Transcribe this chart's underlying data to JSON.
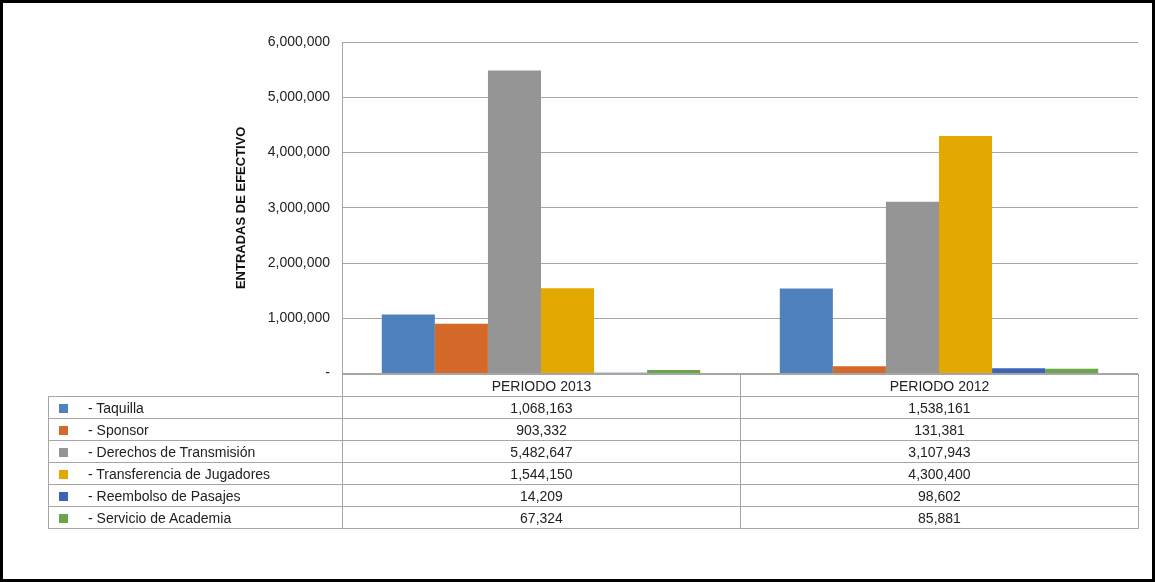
{
  "chart_data": {
    "type": "bar",
    "ylabel": "ENTRADAS DE EFECTIVO",
    "categories": [
      "PERIODO 2013",
      "PERIODO 2012"
    ],
    "series": [
      {
        "name": "- Taquilla",
        "color": "#4f81bd",
        "values": [
          1068163,
          1538161
        ],
        "value_labels": [
          "1,068,163",
          "1,538,161"
        ]
      },
      {
        "name": "- Sponsor",
        "color": "#d4692a",
        "values": [
          903332,
          131381
        ],
        "value_labels": [
          "903,332",
          "131,381"
        ]
      },
      {
        "name": "- Derechos de Transmisión",
        "color": "#959595",
        "values": [
          5482647,
          3107943
        ],
        "value_labels": [
          "5,482,647",
          "3,107,943"
        ]
      },
      {
        "name": "- Transferencia de Jugadores",
        "color": "#e4a900",
        "values": [
          1544150,
          4300400
        ],
        "value_labels": [
          "1,544,150",
          "4,300,400"
        ]
      },
      {
        "name": "- Reembolso de Pasajes",
        "color": "#3d63b8",
        "values": [
          14209,
          98602
        ],
        "value_labels": [
          "14,209",
          "98,602"
        ]
      },
      {
        "name": "- Servicio de Academia",
        "color": "#6ba54a",
        "values": [
          67324,
          85881
        ],
        "value_labels": [
          "67,324",
          "85,881"
        ]
      }
    ],
    "ylim": [
      0,
      6000000
    ],
    "yticks": [
      {
        "value": 0,
        "label": "-"
      },
      {
        "value": 1000000,
        "label": "1,000,000"
      },
      {
        "value": 2000000,
        "label": "2,000,000"
      },
      {
        "value": 3000000,
        "label": "3,000,000"
      },
      {
        "value": 4000000,
        "label": "4,000,000"
      },
      {
        "value": 5000000,
        "label": "5,000,000"
      },
      {
        "value": 6000000,
        "label": "6,000,000"
      }
    ],
    "grid": "y",
    "legend": "bottom"
  }
}
